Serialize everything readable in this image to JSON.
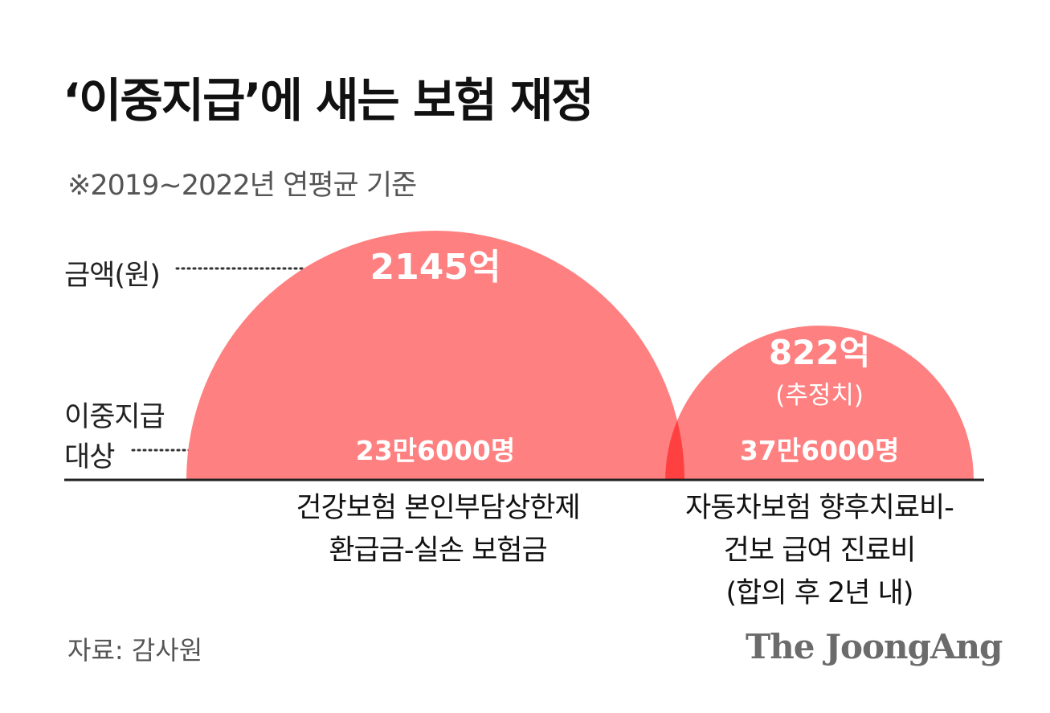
{
  "title": "‘이중지급’에 새는 보험 재정",
  "subtitle": "※2019~2022년 연평균 기준",
  "row_labels": {
    "amount": "금액(원)",
    "count_line1": "이중지급",
    "count_line2": "대상"
  },
  "colors": {
    "semicircle": "#ff8080",
    "overlap": "#ff4040",
    "baseline": "#222222",
    "leader": "#333333",
    "value_text": "#ffffff"
  },
  "chart_data": {
    "type": "semicircle-area",
    "series": [
      {
        "category_lines": [
          "건강보험 본인부담상한제",
          "환급금-실손 보험금"
        ],
        "amount": 2145,
        "amount_label": "2145억",
        "count": 236000,
        "count_label": "23만6000명"
      },
      {
        "category_lines": [
          "자동차보험 향후치료비-",
          "건보 급여 진료비",
          "(합의 후 2년 내)"
        ],
        "amount": 822,
        "amount_label": "822억",
        "amount_note": "(추정치)",
        "count": 376000,
        "count_label": "37만6000명"
      }
    ]
  },
  "source": "자료: 감사원",
  "brand": "The JoongAng"
}
